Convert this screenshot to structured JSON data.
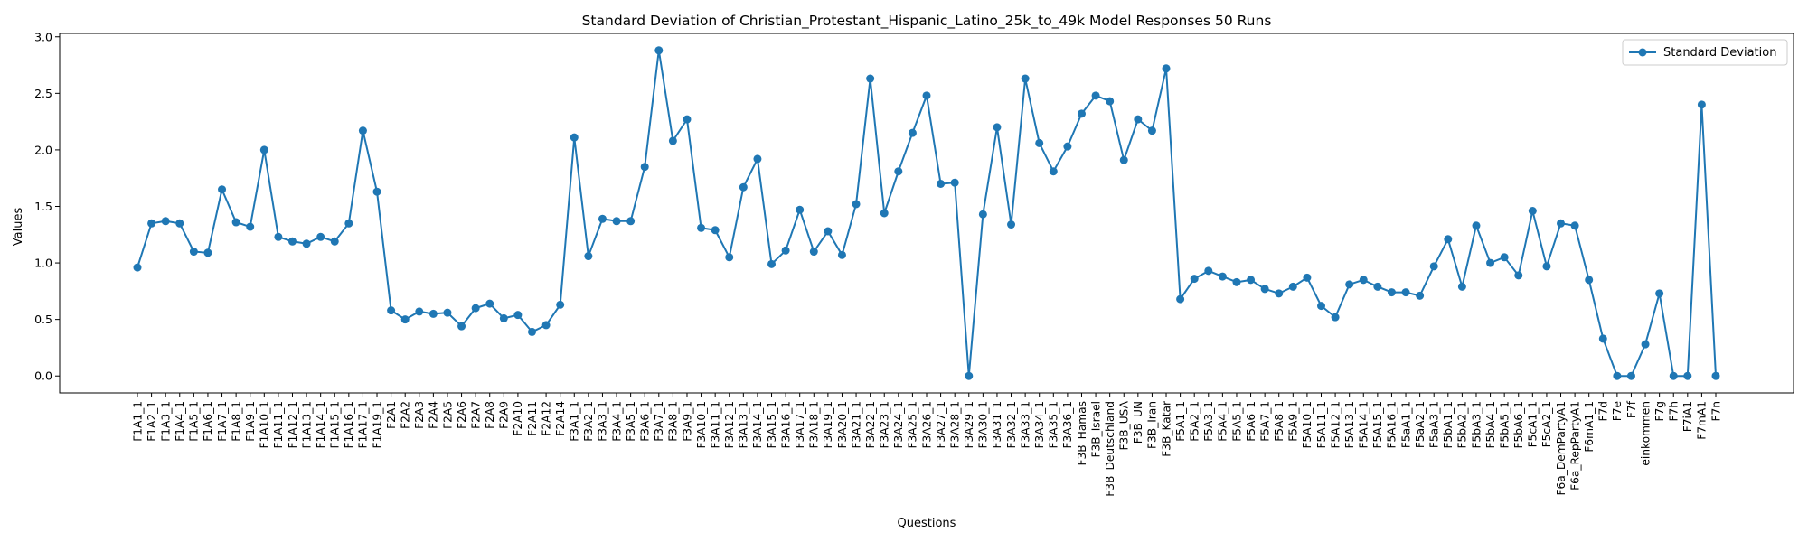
{
  "chart_data": {
    "type": "line",
    "title": "Standard Deviation of Christian_Protestant_Hispanic_Latino_25k_to_49k Model Responses 50 Runs",
    "xlabel": "Questions",
    "ylabel": "Values",
    "ylim": [
      -0.15,
      3.03
    ],
    "yticks": [
      0.0,
      0.5,
      1.0,
      1.5,
      2.0,
      2.5,
      3.0
    ],
    "ytick_labels": [
      "0.0",
      "0.5",
      "1.0",
      "1.5",
      "2.0",
      "2.5",
      "3.0"
    ],
    "grid": false,
    "legend_position": "top-right",
    "color": "#1f77b4",
    "categories": [
      "F1A1_1",
      "F1A2_1",
      "F1A3_1",
      "F1A4_1",
      "F1A5_1",
      "F1A6_1",
      "F1A7_1",
      "F1A8_1",
      "F1A9_1",
      "F1A10_1",
      "F1A11_1",
      "F1A12_1",
      "F1A13_1",
      "F1A14_1",
      "F1A15_1",
      "F1A16_1",
      "F1A17_1",
      "F1A19_1",
      "F2A1",
      "F2A2",
      "F2A3",
      "F2A4",
      "F2A5",
      "F2A6",
      "F2A7",
      "F2A8",
      "F2A9",
      "F2A10",
      "F2A11",
      "F2A12",
      "F2A14",
      "F3A1_1",
      "F3A2_1",
      "F3A3_1",
      "F3A4_1",
      "F3A5_1",
      "F3A6_1",
      "F3A7_1",
      "F3A8_1",
      "F3A9_1",
      "F3A10_1",
      "F3A11_1",
      "F3A12_1",
      "F3A13_1",
      "F3A14_1",
      "F3A15_1",
      "F3A16_1",
      "F3A17_1",
      "F3A18_1",
      "F3A19_1",
      "F3A20_1",
      "F3A21_1",
      "F3A22_1",
      "F3A23_1",
      "F3A24_1",
      "F3A25_1",
      "F3A26_1",
      "F3A27_1",
      "F3A28_1",
      "F3A29_1",
      "F3A30_1",
      "F3A31_1",
      "F3A32_1",
      "F3A33_1",
      "F3A34_1",
      "F3A35_1",
      "F3A36_1",
      "F3B_Hamas",
      "F3B_Israel",
      "F3B_Deutschland",
      "F3B_USA",
      "F3B_UN",
      "F3B_Iran",
      "F3B_Katar",
      "F5A1_1",
      "F5A2_1",
      "F5A3_1",
      "F5A4_1",
      "F5A5_1",
      "F5A6_1",
      "F5A7_1",
      "F5A8_1",
      "F5A9_1",
      "F5A10_1",
      "F5A11_1",
      "F5A12_1",
      "F5A13_1",
      "F5A14_1",
      "F5A15_1",
      "F5A16_1",
      "F5aA1_1",
      "F5aA2_1",
      "F5aA3_1",
      "F5bA1_1",
      "F5bA2_1",
      "F5bA3_1",
      "F5bA4_1",
      "F5bA5_1",
      "F5bA6_1",
      "F5cA1_1",
      "F5cA2_1",
      "F6a_DemPartyA1",
      "F6a_RepPartyA1",
      "F6mA1_1",
      "F7d",
      "F7e",
      "F7f",
      "einkommen",
      "F7g",
      "F7h",
      "F7iA1",
      "F7mA1",
      "F7n"
    ],
    "series": [
      {
        "name": "Standard Deviation",
        "values": [
          0.96,
          1.35,
          1.37,
          1.35,
          1.1,
          1.09,
          1.65,
          1.36,
          1.32,
          2.0,
          1.23,
          1.19,
          1.17,
          1.23,
          1.19,
          1.35,
          2.17,
          1.63,
          0.58,
          0.5,
          0.57,
          0.55,
          0.56,
          0.44,
          0.6,
          0.64,
          0.51,
          0.54,
          0.39,
          0.45,
          0.63,
          2.11,
          1.06,
          1.39,
          1.37,
          1.37,
          1.85,
          2.88,
          2.08,
          2.27,
          1.31,
          1.29,
          1.05,
          1.67,
          1.92,
          0.99,
          1.11,
          1.47,
          1.1,
          1.28,
          1.07,
          1.52,
          2.63,
          1.44,
          1.81,
          2.15,
          2.48,
          1.7,
          1.71,
          0.0,
          1.43,
          2.2,
          1.34,
          2.63,
          2.06,
          1.81,
          2.03,
          2.32,
          2.48,
          2.43,
          1.91,
          2.27,
          2.17,
          2.72,
          0.68,
          0.86,
          0.93,
          0.88,
          0.83,
          0.85,
          0.77,
          0.73,
          0.79,
          0.87,
          0.62,
          0.52,
          0.81,
          0.85,
          0.79,
          0.74,
          0.74,
          0.71,
          0.97,
          1.21,
          0.79,
          1.33,
          1.0,
          1.05,
          0.89,
          1.46,
          0.97,
          1.35,
          1.33,
          0.85,
          0.33,
          0.0,
          0.0,
          0.28,
          0.73,
          0.0,
          0.0,
          2.4,
          0.0
        ]
      }
    ]
  }
}
